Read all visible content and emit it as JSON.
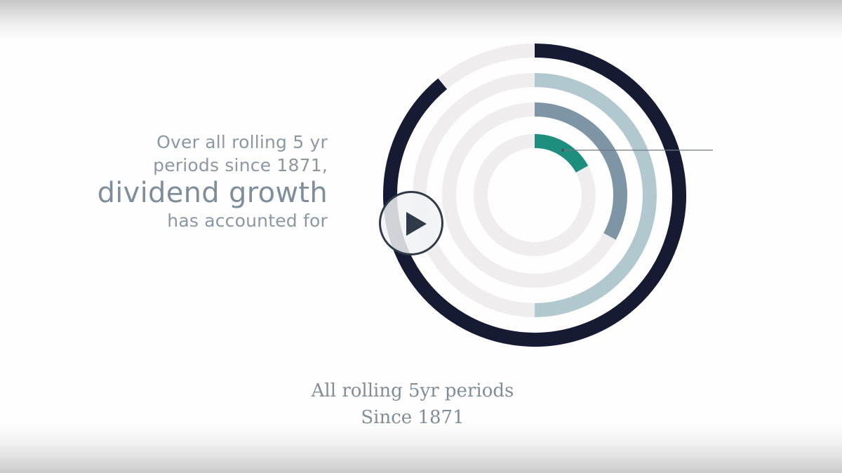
{
  "intro": {
    "line1": "Over all rolling 5 yr",
    "line2": "periods since 1871,",
    "emphasis": "dividend growth",
    "line3": "has accounted for"
  },
  "caption": {
    "line1": "All rolling 5yr periods",
    "line2": "Since 1871"
  },
  "player": {
    "play_icon": "play-icon"
  },
  "chart_data": {
    "type": "radial-bar",
    "rings": [
      {
        "ring": "outer",
        "fraction": 0.89,
        "color": "#161b33"
      },
      {
        "ring": "second",
        "fraction": 0.5,
        "color": "#b2c8cf"
      },
      {
        "ring": "third",
        "fraction": 0.33,
        "color": "#7d95a4"
      },
      {
        "ring": "inner",
        "fraction": 0.17,
        "color": "#1e8e7f"
      }
    ],
    "track_color": "#efedee"
  }
}
